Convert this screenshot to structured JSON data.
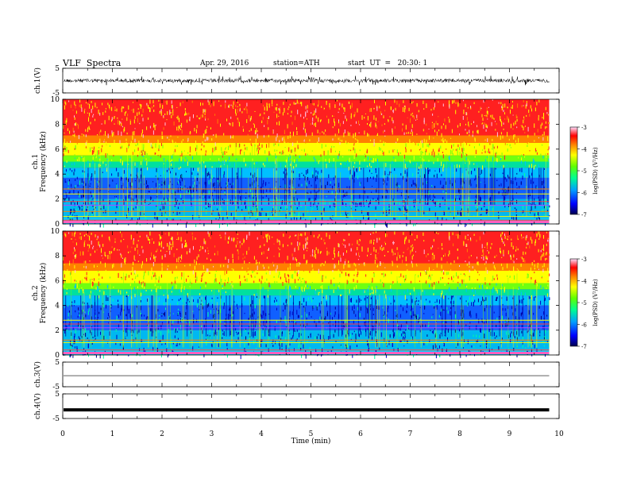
{
  "header": {
    "title": "VLF  Spectra",
    "date": "Apr. 29, 2016",
    "station": "station=ATH",
    "start": "start  UT  =   20:30: 1"
  },
  "chart_data": [
    {
      "type": "line",
      "panel": "ch1-waveform",
      "ylabel": "ch.1(V)",
      "ylim": [
        -5,
        5
      ],
      "yticks": [
        "5",
        "-5"
      ],
      "description_level": "dense broadband noise around 0 V, amplitude roughly -1.5 to 2 V",
      "color": "#000000"
    },
    {
      "type": "heatmap",
      "panel": "ch1-spectrogram",
      "ylabel": [
        "ch.1",
        "Frequency  (kHz)"
      ],
      "ylim": [
        0,
        10
      ],
      "yticks": [
        "0",
        "2",
        "4",
        "6",
        "8",
        "10"
      ],
      "colorbar": {
        "label": "log(PSD) (V²/Hz)",
        "range": [
          -7,
          -3
        ],
        "ticks": [
          "-3",
          "-4",
          "-5",
          "-6",
          "-7"
        ]
      },
      "bands_kHz": {
        "red": [
          6.5,
          10
        ],
        "yellow": [
          5.5,
          6.5
        ],
        "green": [
          4.5,
          5.5
        ],
        "blue": [
          0.5,
          4.5
        ]
      },
      "lines_kHz": [
        0.3,
        0.6,
        1.0,
        1.5,
        1.8,
        2.4,
        2.8
      ]
    },
    {
      "type": "heatmap",
      "panel": "ch2-spectrogram",
      "ylabel": [
        "ch.2",
        "Frequency  (kHz)"
      ],
      "ylim": [
        0,
        10
      ],
      "yticks": [
        "0",
        "2",
        "4",
        "6",
        "8",
        "10"
      ],
      "colorbar": {
        "label": "log(PSD) (V²/Hz)",
        "range": [
          -7,
          -3
        ],
        "ticks": [
          "-3",
          "-4",
          "-5",
          "-6",
          "-7"
        ]
      },
      "bands_kHz": {
        "red": [
          6.8,
          10
        ],
        "yellow": [
          5.8,
          6.8
        ],
        "green": [
          4.8,
          5.8
        ],
        "blue": [
          0.5,
          4.8
        ]
      },
      "lines_kHz": [
        0.4,
        1.0,
        1.2,
        2.2,
        2.5,
        2.8
      ]
    },
    {
      "type": "line",
      "panel": "ch3-waveform",
      "ylabel": "ch.3(V)",
      "ylim": [
        -5,
        5
      ],
      "yticks": [
        "5",
        "-5"
      ],
      "level_V": -0.5,
      "color": "#000000"
    },
    {
      "type": "line",
      "panel": "ch4-waveform",
      "ylabel": "ch.4(V)",
      "ylim": [
        -5,
        5
      ],
      "yticks": [
        "5",
        "-5"
      ],
      "level_V": -1.5,
      "color": "#000000"
    }
  ],
  "x_axis": {
    "label": "Time  (min)",
    "xlim": [
      0,
      10
    ],
    "ticks": [
      "0",
      "1",
      "2",
      "3",
      "4",
      "5",
      "6",
      "7",
      "8",
      "9",
      "10"
    ],
    "data_end_min": 9.8
  },
  "colormap": [
    "#000060",
    "#0000ff",
    "#00b0ff",
    "#00ff80",
    "#60ff00",
    "#ffff00",
    "#ff8000",
    "#ff0000",
    "#ffe0f0"
  ]
}
